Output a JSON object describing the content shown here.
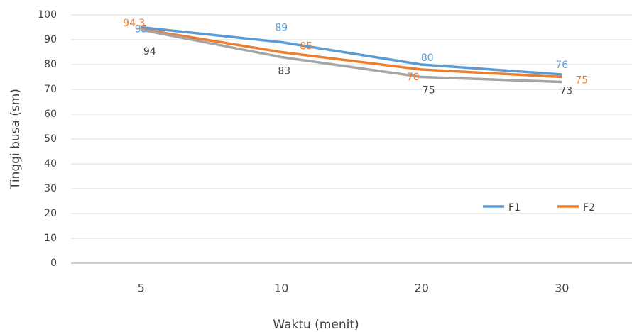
{
  "chart_data": {
    "type": "line",
    "x_label": "Waktu (menit)",
    "y_label": "Tinggi busa (sm)",
    "categories": [
      "5",
      "10",
      "20",
      "30"
    ],
    "series": [
      {
        "name": "F1",
        "color": "#5b9bd5",
        "values": [
          95,
          89,
          80,
          76
        ]
      },
      {
        "name": "F2",
        "color": "#ed7d31",
        "values": [
          94.3,
          85,
          78,
          75
        ]
      },
      {
        "color": "#a5a5a5",
        "values": [
          94,
          83,
          75,
          73
        ]
      }
    ],
    "ylim": [
      0,
      100
    ],
    "yticks": [
      0,
      10,
      20,
      30,
      40,
      50,
      60,
      70,
      80,
      90,
      100
    ],
    "grid": true,
    "legend": "lower right"
  }
}
